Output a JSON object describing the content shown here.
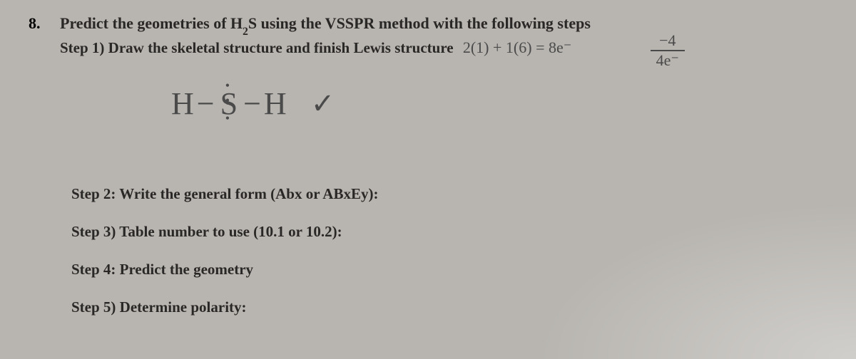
{
  "question": {
    "number": "8.",
    "text_before_sub": "Predict the geometries of H",
    "sub": "2",
    "text_after_sub": "S using the VSSPR method with the following steps"
  },
  "step1": {
    "label": "Step 1) Draw the skeletal structure and finish Lewis structure",
    "handwritten_calc": "2(1) + 1(6) = 8e⁻",
    "frac_top": "−4",
    "frac_bot": "4e⁻"
  },
  "lewis": {
    "left": "H",
    "bond1": "−",
    "center": "S",
    "bond2": "−",
    "right": "H",
    "dots_top": "• •",
    "dots_bot": "• •",
    "check": "✓"
  },
  "step2": {
    "label": "Step 2: Write the general form (Abx or ABxEy):"
  },
  "step3": {
    "label": "Step 3) Table number to use (10.1 or 10.2):"
  },
  "step4": {
    "label": "Step 4: Predict the geometry"
  },
  "step5": {
    "label": "Step 5) Determine polarity:"
  },
  "colors": {
    "background": "#b8b5b0",
    "print_text": "#2a2826",
    "handwriting": "#4a4a4a"
  },
  "typography": {
    "print_font": "Georgia serif",
    "print_size_pt": 16,
    "print_weight": "bold",
    "handwriting_font": "cursive",
    "handwriting_size_pt": 16
  }
}
